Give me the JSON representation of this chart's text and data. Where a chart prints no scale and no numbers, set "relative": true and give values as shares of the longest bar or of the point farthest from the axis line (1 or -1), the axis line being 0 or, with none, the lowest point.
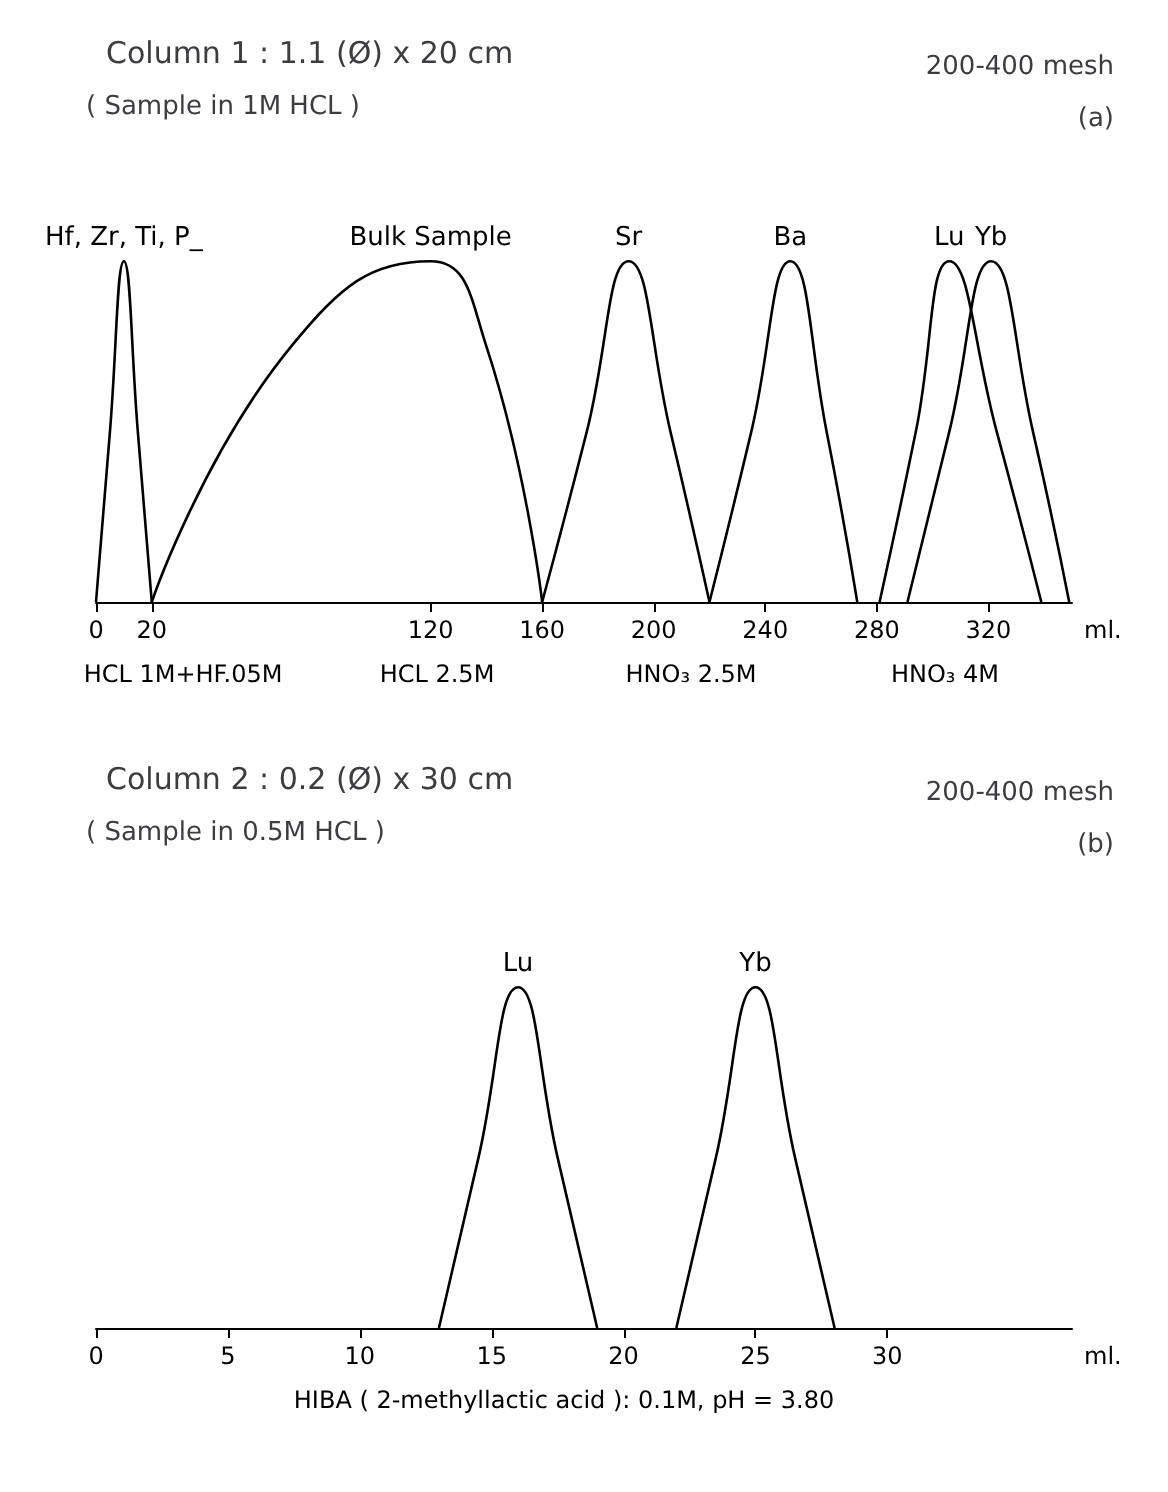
{
  "chart_data": [
    {
      "type": "line",
      "title": "Column 1 : 1.1 (Ø) x 20 cm",
      "subtitle": "( Sample in 1M HCL )",
      "xlabel": "ml.",
      "relative": true,
      "tick_labels": "x",
      "legend": false,
      "grid": false,
      "marker": "none",
      "xlim": [
        0,
        350
      ],
      "xticks": [
        0,
        20,
        120,
        160,
        200,
        240,
        280,
        320
      ],
      "annotations": [
        "200-400 mesh",
        "(a)",
        "HCL 1M+HF.05M",
        "HCL 2.5M",
        "HNO₃ 2.5M",
        "HNO₃ 4M"
      ],
      "series": [
        {
          "name": "Hf, Zr, Ti, P_",
          "color": "#000000",
          "x": [
            0,
            5,
            10,
            15,
            20
          ],
          "values": [
            0,
            0.5,
            1,
            0.5,
            0
          ]
        },
        {
          "name": "Bulk Sample",
          "color": "#000000",
          "x": [
            20,
            70,
            120,
            140,
            160
          ],
          "values": [
            0,
            0.75,
            1,
            0.75,
            0
          ]
        },
        {
          "name": "Sr",
          "color": "#000000",
          "x": [
            160,
            176,
            191,
            206,
            220
          ],
          "values": [
            0,
            0.5,
            1,
            0.5,
            0
          ]
        },
        {
          "name": "Ba",
          "color": "#000000",
          "x": [
            220,
            235,
            249,
            262,
            273
          ],
          "values": [
            0,
            0.5,
            1,
            0.5,
            0
          ]
        },
        {
          "name": "Lu",
          "color": "#000000",
          "x": [
            281,
            294,
            306,
            323,
            339
          ],
          "values": [
            0,
            0.5,
            1,
            0.5,
            0
          ]
        },
        {
          "name": "Yb",
          "color": "#000000",
          "x": [
            291,
            306,
            321,
            336,
            349
          ],
          "values": [
            0,
            0.5,
            1,
            0.5,
            0
          ]
        }
      ]
    },
    {
      "type": "line",
      "title": "Column 2 : 0.2 (Ø) x 30 cm",
      "subtitle": "( Sample in 0.5M HCL )",
      "xlabel": "ml.",
      "relative": true,
      "tick_labels": "x",
      "legend": false,
      "grid": false,
      "marker": "none",
      "xlim": [
        0,
        37
      ],
      "xticks": [
        0,
        5,
        10,
        15,
        20,
        25,
        30
      ],
      "annotations": [
        "200-400 mesh",
        "(b)",
        "HIBA ( 2-methyllactic acid ): 0.1M, pH = 3.80"
      ],
      "series": [
        {
          "name": "Lu",
          "color": "#000000",
          "x": [
            13,
            14.5,
            16,
            17.5,
            19
          ],
          "values": [
            0,
            0.5,
            1,
            0.5,
            0
          ]
        },
        {
          "name": "Yb",
          "color": "#000000",
          "x": [
            22,
            23.5,
            25,
            26.5,
            28
          ],
          "values": [
            0,
            0.5,
            1,
            0.5,
            0
          ]
        }
      ]
    }
  ]
}
